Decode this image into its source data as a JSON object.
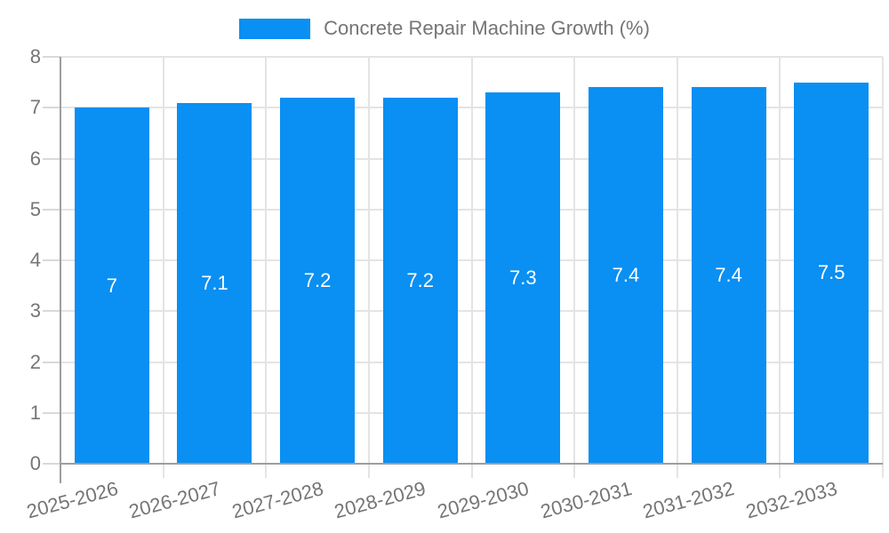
{
  "chart_data": {
    "type": "bar",
    "title": "Concrete Repair Machine Growth (%)",
    "categories": [
      "2025-2026",
      "2026-2027",
      "2027-2028",
      "2028-2029",
      "2029-2030",
      "2030-2031",
      "2031-2032",
      "2032-2033"
    ],
    "values": [
      7,
      7.1,
      7.2,
      7.2,
      7.3,
      7.4,
      7.4,
      7.5
    ],
    "value_labels": [
      "7",
      "7.1",
      "7.2",
      "7.2",
      "7.3",
      "7.4",
      "7.4",
      "7.5"
    ],
    "xlabel": "",
    "ylabel": "",
    "ylim": [
      0,
      8
    ],
    "yticks": [
      0,
      1,
      2,
      3,
      4,
      5,
      6,
      7,
      8
    ],
    "grid": true,
    "legend_position": "top",
    "colors": {
      "bar": "#0a8ff2",
      "grid": "#e4e4e4",
      "tick": "#d9d9d9",
      "axis": "#9e9e9e",
      "text": "#757575",
      "bar_label": "#ffffff",
      "background": "#ffffff"
    }
  }
}
